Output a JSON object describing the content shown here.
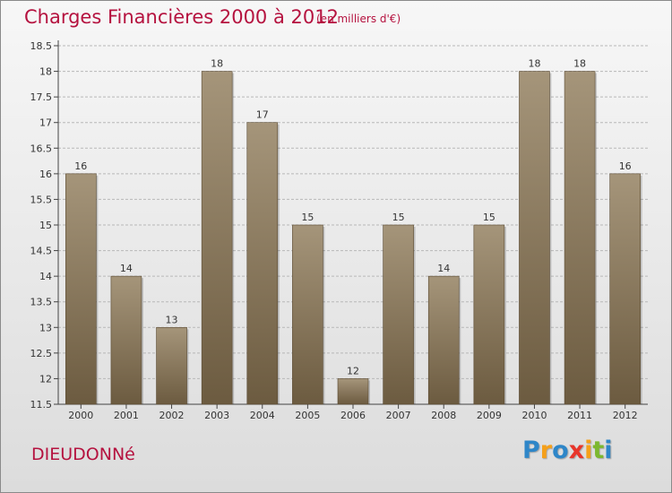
{
  "header": {
    "title": "Charges Financières 2000 à 2012",
    "subtitle": "(en milliers d'€)"
  },
  "footer": {
    "place": "DIEUDONNé",
    "logo": {
      "text": "Proxiti",
      "letters": [
        {
          "char": "P",
          "color": "#2e86c8"
        },
        {
          "char": "r",
          "color": "#f5a01a"
        },
        {
          "char": "o",
          "color": "#2e86c8"
        },
        {
          "char": "x",
          "color": "#e8352a"
        },
        {
          "char": "i",
          "color": "#f5a01a"
        },
        {
          "char": "t",
          "color": "#7cb82f"
        },
        {
          "char": "i",
          "color": "#2e86c8"
        }
      ]
    }
  },
  "colors": {
    "title": "#b5123f",
    "bar_top": "#a5957a",
    "bar_bottom": "#6c5b40",
    "grid": "#b8b8b8"
  },
  "chart_data": {
    "type": "bar",
    "title": "Charges Financières 2000 à 2012",
    "subtitle": "(en milliers d'€)",
    "categories": [
      "2000",
      "2001",
      "2002",
      "2003",
      "2004",
      "2005",
      "2006",
      "2007",
      "2008",
      "2009",
      "2010",
      "2011",
      "2012"
    ],
    "values": [
      16,
      14,
      13,
      18,
      17,
      15,
      12,
      15,
      14,
      15,
      18,
      18,
      16
    ],
    "ylim": [
      11.5,
      18.5
    ],
    "yticks": [
      "11.5",
      "12",
      "12.5",
      "13",
      "13.5",
      "14",
      "14.5",
      "15",
      "15.5",
      "16",
      "16.5",
      "17",
      "17.5",
      "18",
      "18.5"
    ],
    "grid": true,
    "data_labels": true
  }
}
